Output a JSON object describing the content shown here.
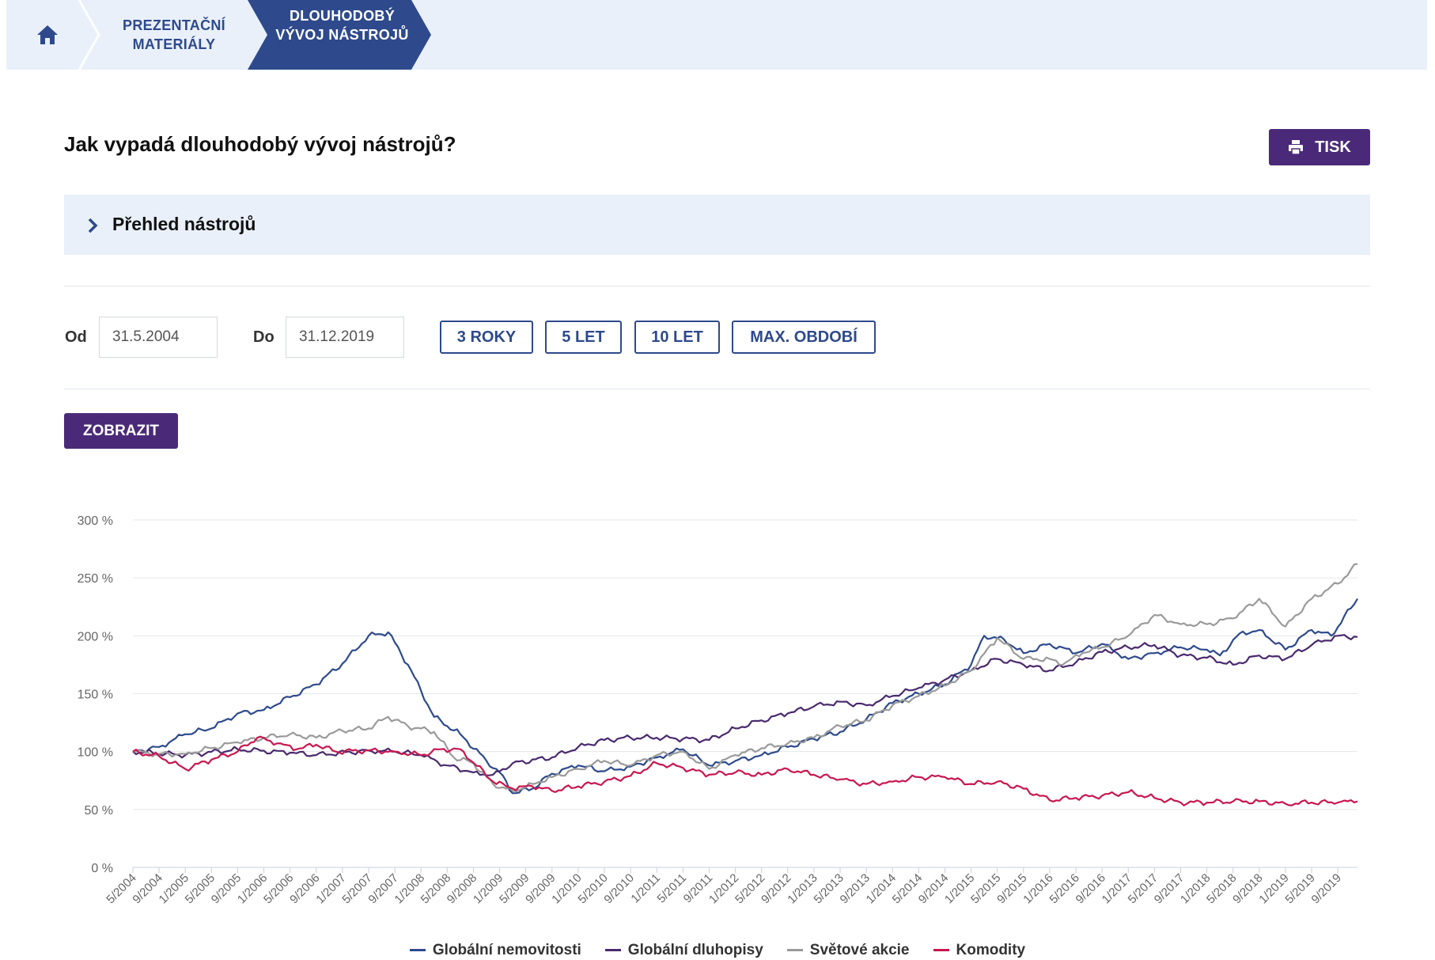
{
  "breadcrumb": {
    "home_icon": "home-icon",
    "items": [
      "PREZENTAČNÍ MATERIÁLY",
      "DLOUHODOBÝ VÝVOJ NÁSTROJŮ"
    ]
  },
  "header": {
    "title": "Jak vypadá dlouhodobý vývoj nástrojů?",
    "print_label": "TISK",
    "print_icon": "printer-icon"
  },
  "accordion": {
    "label": "Přehled nástrojů",
    "icon": "chevron-right-icon"
  },
  "filters": {
    "from_label": "Od",
    "from_value": "31.5.2004",
    "to_label": "Do",
    "to_value": "31.12.2019",
    "periods": [
      "3 ROKY",
      "5 LET",
      "10 LET",
      "MAX. OBDOBÍ"
    ],
    "show_label": "ZOBRAZIT"
  },
  "colors": {
    "brand_purple": "#4a2a78",
    "brand_blue": "#2e4a8c",
    "panel_bg": "#e9f0fa"
  },
  "chart_data": {
    "type": "line",
    "ylim": [
      0,
      300
    ],
    "yticks": [
      "0 %",
      "50 %",
      "100 %",
      "150 %",
      "200 %",
      "250 %",
      "300 %"
    ],
    "x_tick_labels": [
      "5/2004",
      "9/2004",
      "1/2005",
      "5/2005",
      "9/2005",
      "1/2006",
      "5/2006",
      "9/2006",
      "1/2007",
      "5/2007",
      "9/2007",
      "1/2008",
      "5/2008",
      "9/2008",
      "1/2009",
      "5/2009",
      "9/2009",
      "1/2010",
      "5/2010",
      "9/2010",
      "1/2011",
      "5/2011",
      "9/2011",
      "1/2012",
      "5/2012",
      "9/2012",
      "1/2013",
      "5/2013",
      "9/2013",
      "1/2014",
      "5/2014",
      "9/2014",
      "1/2015",
      "5/2015",
      "9/2015",
      "1/2016",
      "5/2016",
      "9/2016",
      "1/2017",
      "5/2017",
      "9/2017",
      "1/2018",
      "5/2018",
      "9/2018",
      "1/2019",
      "5/2019",
      "9/2019"
    ],
    "x_range": [
      "2004-05",
      "2019-12"
    ],
    "legend_position": "bottom",
    "grid": true,
    "series": [
      {
        "name": "Globální nemovitosti",
        "color": "#2e4a8c",
        "points": [
          [
            "2004-05",
            100
          ],
          [
            "2004-09",
            104
          ],
          [
            "2005-01",
            115
          ],
          [
            "2005-05",
            120
          ],
          [
            "2005-09",
            133
          ],
          [
            "2006-01",
            136
          ],
          [
            "2006-05",
            147
          ],
          [
            "2006-09",
            158
          ],
          [
            "2007-01",
            176
          ],
          [
            "2007-05",
            200
          ],
          [
            "2007-08",
            203
          ],
          [
            "2007-11",
            175
          ],
          [
            "2008-03",
            130
          ],
          [
            "2008-07",
            115
          ],
          [
            "2008-11",
            92
          ],
          [
            "2009-01",
            82
          ],
          [
            "2009-03",
            64
          ],
          [
            "2009-06",
            68
          ],
          [
            "2009-09",
            81
          ],
          [
            "2010-01",
            88
          ],
          [
            "2010-05",
            83
          ],
          [
            "2010-09",
            87
          ],
          [
            "2011-01",
            95
          ],
          [
            "2011-05",
            102
          ],
          [
            "2011-09",
            88
          ],
          [
            "2012-01",
            92
          ],
          [
            "2012-05",
            97
          ],
          [
            "2012-09",
            104
          ],
          [
            "2013-01",
            111
          ],
          [
            "2013-05",
            117
          ],
          [
            "2013-09",
            128
          ],
          [
            "2014-01",
            142
          ],
          [
            "2014-05",
            150
          ],
          [
            "2014-09",
            158
          ],
          [
            "2015-01",
            175
          ],
          [
            "2015-03",
            200
          ],
          [
            "2015-06",
            197
          ],
          [
            "2015-09",
            185
          ],
          [
            "2016-01",
            193
          ],
          [
            "2016-05",
            185
          ],
          [
            "2016-09",
            193
          ],
          [
            "2017-01",
            180
          ],
          [
            "2017-05",
            185
          ],
          [
            "2017-09",
            190
          ],
          [
            "2018-01",
            188
          ],
          [
            "2018-03",
            183
          ],
          [
            "2018-06",
            202
          ],
          [
            "2018-09",
            205
          ],
          [
            "2019-01",
            188
          ],
          [
            "2019-05",
            205
          ],
          [
            "2019-08",
            200
          ],
          [
            "2019-12",
            232
          ]
        ]
      },
      {
        "name": "Globální dluhopisy",
        "color": "#4a2a6e",
        "points": [
          [
            "2004-05",
            100
          ],
          [
            "2005-01",
            97
          ],
          [
            "2005-09",
            102
          ],
          [
            "2006-05",
            99
          ],
          [
            "2006-09",
            97
          ],
          [
            "2007-05",
            101
          ],
          [
            "2007-09",
            100
          ],
          [
            "2008-01",
            97
          ],
          [
            "2008-05",
            88
          ],
          [
            "2008-09",
            82
          ],
          [
            "2008-12",
            80
          ],
          [
            "2009-03",
            90
          ],
          [
            "2009-09",
            95
          ],
          [
            "2010-01",
            104
          ],
          [
            "2010-05",
            110
          ],
          [
            "2010-09",
            112
          ],
          [
            "2011-01",
            112
          ],
          [
            "2011-05",
            111
          ],
          [
            "2011-09",
            110
          ],
          [
            "2012-01",
            120
          ],
          [
            "2012-05",
            127
          ],
          [
            "2012-09",
            133
          ],
          [
            "2013-01",
            139
          ],
          [
            "2013-05",
            143
          ],
          [
            "2013-09",
            140
          ],
          [
            "2014-01",
            148
          ],
          [
            "2014-05",
            155
          ],
          [
            "2014-09",
            162
          ],
          [
            "2015-01",
            170
          ],
          [
            "2015-05",
            180
          ],
          [
            "2015-09",
            175
          ],
          [
            "2016-01",
            170
          ],
          [
            "2016-05",
            177
          ],
          [
            "2016-09",
            186
          ],
          [
            "2017-01",
            190
          ],
          [
            "2017-05",
            192
          ],
          [
            "2017-09",
            183
          ],
          [
            "2018-01",
            181
          ],
          [
            "2018-05",
            175
          ],
          [
            "2018-09",
            183
          ],
          [
            "2019-01",
            180
          ],
          [
            "2019-05",
            192
          ],
          [
            "2019-09",
            200
          ],
          [
            "2019-12",
            199
          ]
        ]
      },
      {
        "name": "Světové akcie",
        "color": "#9a9a9a",
        "points": [
          [
            "2004-05",
            100
          ],
          [
            "2004-09",
            98
          ],
          [
            "2005-01",
            98
          ],
          [
            "2005-05",
            103
          ],
          [
            "2005-09",
            108
          ],
          [
            "2006-01",
            112
          ],
          [
            "2006-05",
            115
          ],
          [
            "2006-09",
            112
          ],
          [
            "2007-01",
            118
          ],
          [
            "2007-05",
            120
          ],
          [
            "2007-08",
            130
          ],
          [
            "2007-11",
            122
          ],
          [
            "2008-03",
            117
          ],
          [
            "2008-06",
            95
          ],
          [
            "2008-09",
            90
          ],
          [
            "2008-12",
            72
          ],
          [
            "2009-03",
            66
          ],
          [
            "2009-06",
            72
          ],
          [
            "2009-09",
            78
          ],
          [
            "2010-01",
            85
          ],
          [
            "2010-05",
            92
          ],
          [
            "2010-09",
            88
          ],
          [
            "2011-01",
            97
          ],
          [
            "2011-05",
            100
          ],
          [
            "2011-09",
            85
          ],
          [
            "2012-01",
            97
          ],
          [
            "2012-05",
            103
          ],
          [
            "2012-09",
            107
          ],
          [
            "2013-01",
            112
          ],
          [
            "2013-05",
            122
          ],
          [
            "2013-09",
            127
          ],
          [
            "2014-01",
            140
          ],
          [
            "2014-05",
            148
          ],
          [
            "2014-09",
            157
          ],
          [
            "2015-01",
            170
          ],
          [
            "2015-05",
            198
          ],
          [
            "2015-09",
            180
          ],
          [
            "2016-01",
            180
          ],
          [
            "2016-03",
            175
          ],
          [
            "2016-06",
            185
          ],
          [
            "2016-09",
            190
          ],
          [
            "2017-01",
            200
          ],
          [
            "2017-05",
            218
          ],
          [
            "2017-09",
            210
          ],
          [
            "2018-01",
            210
          ],
          [
            "2018-05",
            215
          ],
          [
            "2018-09",
            232
          ],
          [
            "2019-01",
            208
          ],
          [
            "2019-05",
            232
          ],
          [
            "2019-09",
            245
          ],
          [
            "2019-12",
            262
          ]
        ]
      },
      {
        "name": "Komodity",
        "color": "#c8174e",
        "points": [
          [
            "2004-05",
            100
          ],
          [
            "2004-09",
            96
          ],
          [
            "2005-01",
            85
          ],
          [
            "2005-05",
            93
          ],
          [
            "2005-09",
            100
          ],
          [
            "2005-12",
            112
          ],
          [
            "2006-03",
            107
          ],
          [
            "2006-06",
            102
          ],
          [
            "2006-09",
            106
          ],
          [
            "2006-12",
            100
          ],
          [
            "2007-05",
            101
          ],
          [
            "2007-09",
            100
          ],
          [
            "2008-01",
            97
          ],
          [
            "2008-04",
            102
          ],
          [
            "2008-07",
            102
          ],
          [
            "2008-12",
            74
          ],
          [
            "2009-03",
            68
          ],
          [
            "2009-06",
            70
          ],
          [
            "2009-09",
            66
          ],
          [
            "2010-01",
            70
          ],
          [
            "2010-05",
            74
          ],
          [
            "2010-09",
            79
          ],
          [
            "2011-01",
            90
          ],
          [
            "2011-05",
            86
          ],
          [
            "2011-09",
            80
          ],
          [
            "2012-01",
            82
          ],
          [
            "2012-05",
            80
          ],
          [
            "2012-09",
            85
          ],
          [
            "2013-01",
            80
          ],
          [
            "2013-05",
            76
          ],
          [
            "2013-09",
            72
          ],
          [
            "2014-01",
            74
          ],
          [
            "2014-05",
            78
          ],
          [
            "2014-09",
            78
          ],
          [
            "2015-01",
            72
          ],
          [
            "2015-05",
            74
          ],
          [
            "2015-09",
            68
          ],
          [
            "2016-01",
            58
          ],
          [
            "2016-05",
            60
          ],
          [
            "2016-09",
            62
          ],
          [
            "2017-01",
            65
          ],
          [
            "2017-05",
            60
          ],
          [
            "2017-09",
            56
          ],
          [
            "2018-01",
            56
          ],
          [
            "2018-05",
            57
          ],
          [
            "2018-09",
            57
          ],
          [
            "2019-01",
            55
          ],
          [
            "2019-05",
            56
          ],
          [
            "2019-09",
            56
          ],
          [
            "2019-12",
            57
          ]
        ]
      }
    ]
  }
}
